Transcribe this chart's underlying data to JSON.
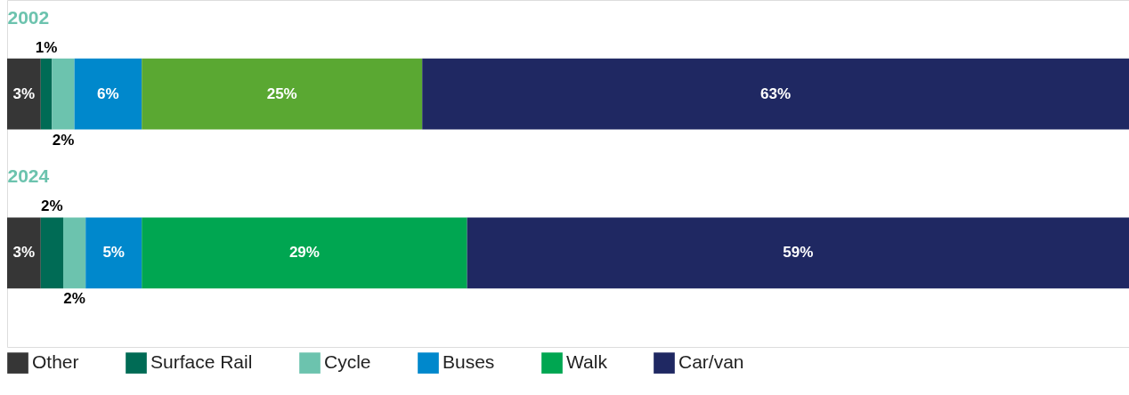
{
  "chart_data": {
    "type": "bar",
    "orientation": "horizontal",
    "stacked": true,
    "categories": [
      "2002",
      "2024"
    ],
    "xlim": [
      0,
      100
    ],
    "tick_labels": "y",
    "legend": "bottom",
    "grid": false,
    "series": [
      {
        "name": "Other",
        "color": "#363636",
        "values": [
          3,
          3
        ],
        "value_labels": [
          "3%",
          "3%"
        ]
      },
      {
        "name": "Surface Rail",
        "color": "#006b55",
        "values": [
          1,
          2
        ],
        "value_labels": [
          "1%",
          "2%"
        ]
      },
      {
        "name": "Cycle",
        "color": "#6cc3ae",
        "values": [
          2,
          2
        ],
        "value_labels": [
          "2%",
          "2%"
        ]
      },
      {
        "name": "Buses",
        "color": "#0088cc",
        "values": [
          6,
          5
        ],
        "value_labels": [
          "6%",
          "5%"
        ]
      },
      {
        "name": "Walk",
        "color": "#00a651",
        "colors": [
          "#5aa832",
          "#00a651"
        ],
        "values": [
          25,
          29
        ],
        "value_labels": [
          "25%",
          "29%"
        ]
      },
      {
        "name": "Car/van",
        "color": "#1f2862",
        "values": [
          63,
          59
        ],
        "value_labels": [
          "63%",
          "59%"
        ]
      }
    ]
  }
}
